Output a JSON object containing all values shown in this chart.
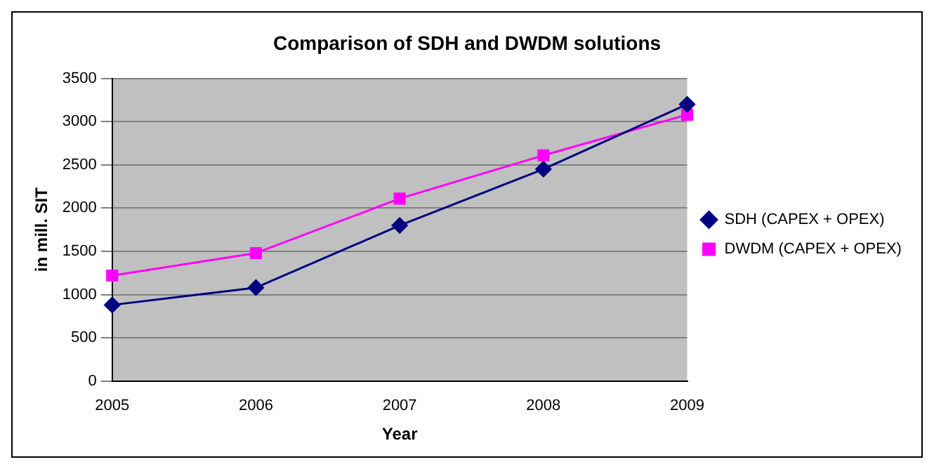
{
  "chart_data": {
    "type": "line",
    "title": "Comparison of SDH and DWDM solutions",
    "xlabel": "Year",
    "ylabel": "in mill. SIT",
    "categories": [
      "2005",
      "2006",
      "2007",
      "2008",
      "2009"
    ],
    "series": [
      {
        "name": "SDH (CAPEX + OPEX)",
        "color": "#000080",
        "values": [
          880,
          1080,
          1800,
          2450,
          3200
        ],
        "marker": "diamond"
      },
      {
        "name": "DWDM (CAPEX + OPEX)",
        "color": "#ff00ff",
        "values": [
          1220,
          1480,
          2110,
          2610,
          3080
        ],
        "marker": "square"
      }
    ],
    "ylim": [
      0,
      3500
    ],
    "yticks": [
      0,
      500,
      1000,
      1500,
      2000,
      2500,
      3000,
      3500
    ],
    "grid": "y",
    "legend": "right",
    "line_style": "solid"
  }
}
